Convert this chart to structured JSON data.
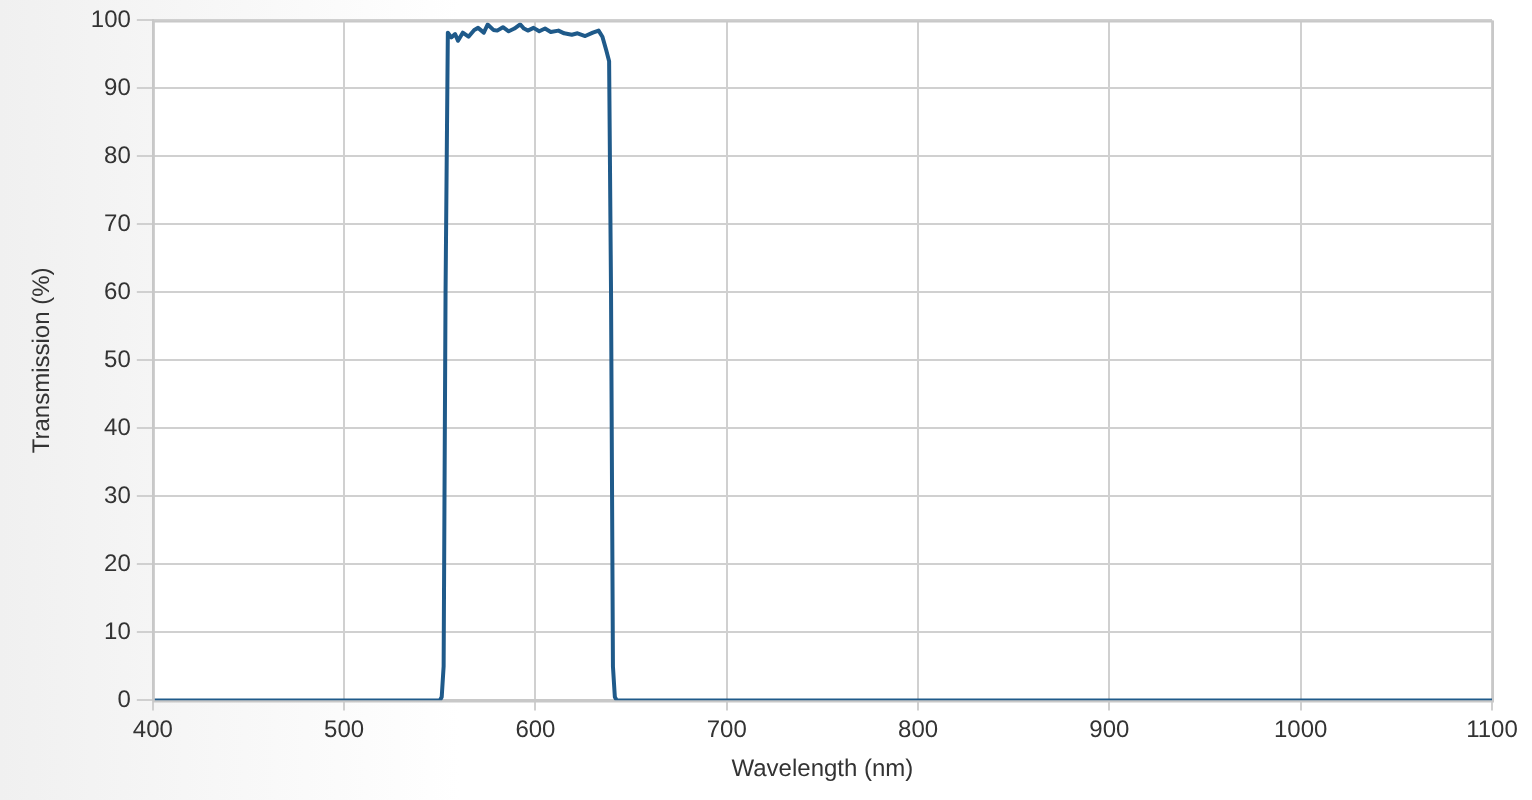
{
  "chart_data": {
    "type": "line",
    "xlabel": "Wavelength (nm)",
    "ylabel": "Transmission (%)",
    "x": [
      400,
      500,
      550,
      551,
      552,
      553,
      554.2,
      556,
      558,
      559.5,
      562,
      565,
      568,
      570,
      573,
      575,
      578,
      580,
      583,
      586,
      589,
      592,
      594,
      596,
      599,
      602,
      605,
      608,
      612,
      615,
      619,
      622,
      626,
      630,
      633,
      635,
      637,
      638.5,
      639.5,
      640.5,
      641.5,
      642.5,
      644,
      700,
      800,
      900,
      1000,
      1100
    ],
    "series": [
      {
        "color": "#1f5a8a",
        "values": [
          0,
          0,
          0,
          0.5,
          5,
          60,
          98.2,
          97.5,
          98,
          97,
          98.2,
          97.6,
          98.6,
          98.9,
          98.2,
          99.4,
          98.6,
          98.5,
          99,
          98.4,
          98.8,
          99.4,
          98.8,
          98.5,
          98.9,
          98.4,
          98.8,
          98.3,
          98.5,
          98.1,
          97.9,
          98.1,
          97.7,
          98.2,
          98.5,
          97.6,
          95.6,
          94,
          60,
          5,
          0.5,
          0,
          0,
          0,
          0,
          0,
          0,
          0
        ]
      }
    ],
    "xlim": [
      400,
      1100
    ],
    "xticks": [
      400,
      500,
      600,
      700,
      800,
      900,
      1000,
      1100
    ],
    "ylim": [
      0,
      100
    ],
    "yticks": [
      0,
      10,
      20,
      30,
      40,
      50,
      60,
      70,
      80,
      90,
      100
    ],
    "grid": true,
    "legend": false,
    "marker": "none",
    "line_style": "solid"
  }
}
